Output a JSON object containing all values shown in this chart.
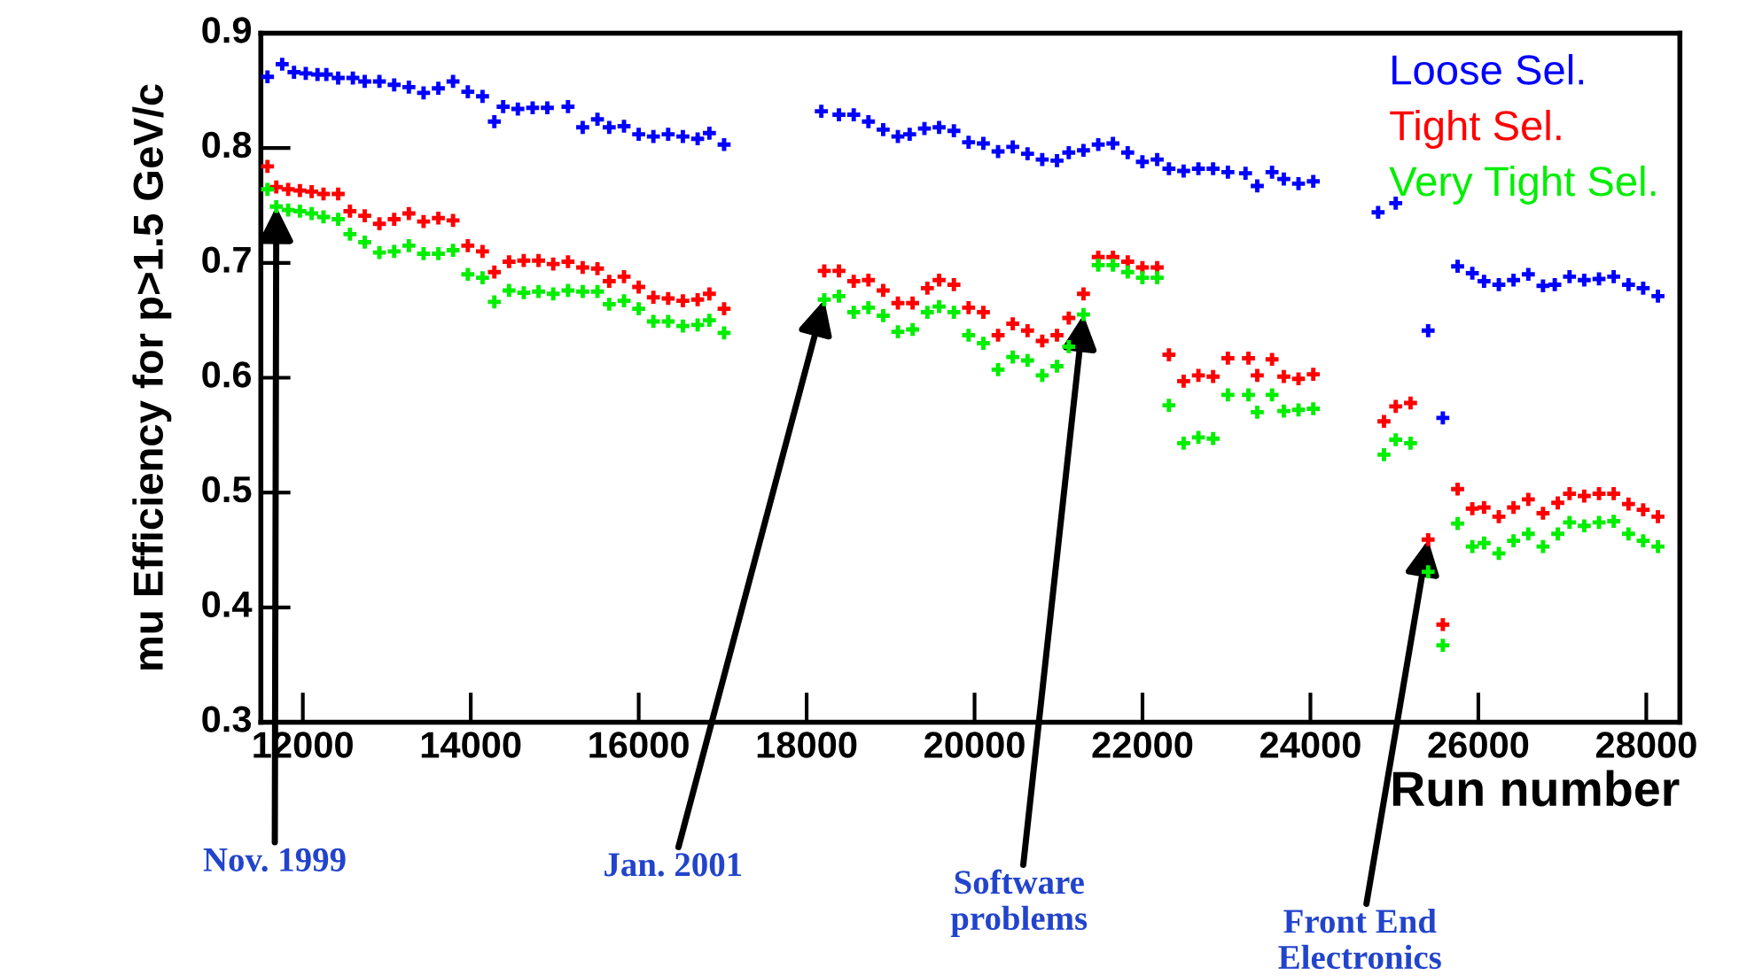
{
  "chart_data": {
    "type": "scatter",
    "xlabel": "Run number",
    "ylabel": "mu Efficiency for p>1.5 GeV/c",
    "xlim": [
      11500,
      28400
    ],
    "ylim": [
      0.3,
      0.9
    ],
    "xticks": [
      12000,
      14000,
      16000,
      18000,
      20000,
      22000,
      24000,
      26000,
      28000
    ],
    "yticks": [
      0.3,
      0.4,
      0.5,
      0.6,
      0.7,
      0.8,
      0.9
    ],
    "grid": false,
    "legend": "top right",
    "series": [
      {
        "name": "Loose Sel.",
        "color": "#0000ff",
        "x": [
          11579,
          11754,
          11895,
          12035,
          12175,
          12280,
          12421,
          12596,
          12737,
          12912,
          13088,
          13263,
          13438,
          13614,
          13789,
          13965,
          14140,
          14281,
          14386,
          14561,
          14737,
          14912,
          15158,
          15333,
          15509,
          15649,
          15825,
          16000,
          16175,
          16351,
          16526,
          16702,
          16842,
          17017,
          18175,
          18385,
          18561,
          18736,
          18912,
          19087,
          19227,
          19403,
          19578,
          19754,
          19929,
          20105,
          20280,
          20455,
          20631,
          20806,
          20982,
          21122,
          21297,
          21473,
          21648,
          21824,
          21999,
          22175,
          22315,
          22490,
          22666,
          22841,
          23017,
          23227,
          23367,
          23543,
          23683,
          23858,
          24034,
          24806,
          25016,
          25402,
          25577,
          25753,
          25928,
          26068,
          26244,
          26419,
          26595,
          26770,
          26910,
          27086,
          27261,
          27437,
          27612,
          27788,
          27963,
          28139
        ],
        "values": [
          0.862,
          0.873,
          0.866,
          0.865,
          0.864,
          0.864,
          0.861,
          0.861,
          0.858,
          0.858,
          0.855,
          0.853,
          0.848,
          0.852,
          0.858,
          0.849,
          0.845,
          0.823,
          0.836,
          0.834,
          0.835,
          0.835,
          0.836,
          0.818,
          0.825,
          0.818,
          0.819,
          0.812,
          0.81,
          0.812,
          0.81,
          0.808,
          0.813,
          0.803,
          0.832,
          0.829,
          0.829,
          0.823,
          0.816,
          0.81,
          0.812,
          0.817,
          0.818,
          0.815,
          0.805,
          0.804,
          0.797,
          0.801,
          0.795,
          0.79,
          0.789,
          0.796,
          0.798,
          0.803,
          0.804,
          0.796,
          0.788,
          0.79,
          0.782,
          0.78,
          0.782,
          0.782,
          0.779,
          0.778,
          0.767,
          0.779,
          0.773,
          0.769,
          0.771,
          0.744,
          0.752,
          0.641,
          0.565,
          0.697,
          0.691,
          0.684,
          0.681,
          0.685,
          0.69,
          0.68,
          0.681,
          0.688,
          0.685,
          0.686,
          0.688,
          0.681,
          0.678,
          0.671
        ]
      },
      {
        "name": "Tight Sel.",
        "color": "#ff0000",
        "x": [
          11579,
          11684,
          11825,
          11965,
          12105,
          12246,
          12421,
          12561,
          12737,
          12912,
          13088,
          13263,
          13438,
          13614,
          13789,
          13965,
          14140,
          14281,
          14456,
          14631,
          14807,
          14982,
          15158,
          15333,
          15509,
          15649,
          15825,
          16000,
          16175,
          16351,
          16526,
          16702,
          16842,
          17017,
          18210,
          18385,
          18561,
          18736,
          18912,
          19087,
          19262,
          19438,
          19578,
          19754,
          19929,
          20105,
          20280,
          20455,
          20631,
          20806,
          20982,
          21122,
          21297,
          21473,
          21648,
          21824,
          21999,
          22175,
          22315,
          22490,
          22666,
          22841,
          23017,
          23262,
          23367,
          23543,
          23683,
          23858,
          24034,
          24876,
          25016,
          25192,
          25402,
          25577,
          25753,
          25928,
          26068,
          26244,
          26419,
          26595,
          26770,
          26946,
          27086,
          27261,
          27437,
          27612,
          27788,
          27963,
          28139
        ],
        "values": [
          0.784,
          0.766,
          0.764,
          0.763,
          0.762,
          0.76,
          0.76,
          0.745,
          0.741,
          0.734,
          0.738,
          0.743,
          0.736,
          0.739,
          0.737,
          0.715,
          0.71,
          0.692,
          0.701,
          0.702,
          0.702,
          0.699,
          0.701,
          0.696,
          0.695,
          0.684,
          0.688,
          0.679,
          0.67,
          0.669,
          0.667,
          0.668,
          0.673,
          0.66,
          0.693,
          0.693,
          0.684,
          0.685,
          0.676,
          0.665,
          0.665,
          0.678,
          0.685,
          0.681,
          0.661,
          0.657,
          0.637,
          0.647,
          0.641,
          0.632,
          0.637,
          0.652,
          0.673,
          0.705,
          0.705,
          0.701,
          0.696,
          0.696,
          0.62,
          0.597,
          0.602,
          0.601,
          0.617,
          0.617,
          0.602,
          0.616,
          0.601,
          0.599,
          0.603,
          0.562,
          0.575,
          0.578,
          0.459,
          0.385,
          0.503,
          0.486,
          0.487,
          0.479,
          0.487,
          0.494,
          0.482,
          0.491,
          0.499,
          0.497,
          0.499,
          0.499,
          0.49,
          0.485,
          0.479
        ]
      },
      {
        "name": "Very Tight Sel.",
        "color": "#00ee00",
        "x": [
          11579,
          11684,
          11825,
          11965,
          12105,
          12246,
          12421,
          12561,
          12737,
          12912,
          13088,
          13263,
          13438,
          13614,
          13789,
          13965,
          14140,
          14281,
          14456,
          14631,
          14807,
          14982,
          15158,
          15333,
          15509,
          15649,
          15825,
          16000,
          16175,
          16351,
          16526,
          16702,
          16842,
          17017,
          18210,
          18385,
          18561,
          18736,
          18912,
          19087,
          19262,
          19438,
          19578,
          19754,
          19929,
          20105,
          20280,
          20455,
          20631,
          20806,
          20982,
          21122,
          21297,
          21473,
          21648,
          21824,
          21999,
          22175,
          22315,
          22490,
          22666,
          22841,
          23017,
          23262,
          23367,
          23543,
          23683,
          23858,
          24034,
          24876,
          25016,
          25192,
          25402,
          25577,
          25753,
          25928,
          26068,
          26244,
          26419,
          26595,
          26770,
          26946,
          27086,
          27261,
          27437,
          27612,
          27788,
          27963,
          28139
        ],
        "values": [
          0.764,
          0.749,
          0.746,
          0.745,
          0.743,
          0.74,
          0.738,
          0.725,
          0.718,
          0.709,
          0.71,
          0.715,
          0.708,
          0.708,
          0.711,
          0.69,
          0.687,
          0.666,
          0.676,
          0.674,
          0.675,
          0.673,
          0.676,
          0.675,
          0.675,
          0.664,
          0.667,
          0.66,
          0.649,
          0.649,
          0.645,
          0.646,
          0.65,
          0.639,
          0.668,
          0.671,
          0.657,
          0.661,
          0.654,
          0.64,
          0.642,
          0.657,
          0.662,
          0.657,
          0.637,
          0.63,
          0.607,
          0.618,
          0.615,
          0.602,
          0.61,
          0.627,
          0.655,
          0.698,
          0.698,
          0.692,
          0.687,
          0.687,
          0.576,
          0.543,
          0.548,
          0.547,
          0.585,
          0.585,
          0.57,
          0.585,
          0.571,
          0.572,
          0.573,
          0.533,
          0.546,
          0.543,
          0.431,
          0.367,
          0.473,
          0.453,
          0.456,
          0.447,
          0.458,
          0.464,
          0.453,
          0.464,
          0.474,
          0.471,
          0.474,
          0.475,
          0.464,
          0.458,
          0.453
        ]
      }
    ],
    "annotations": [
      {
        "text": "Nov. 1999",
        "x": 11684,
        "y": 0.749
      },
      {
        "text": "Jan. 2001",
        "x": 18210,
        "y": 0.668
      },
      {
        "text": "Software\nproblems",
        "x": 21297,
        "y": 0.655
      },
      {
        "text": "Front End\nElectronics",
        "x": 25402,
        "y": 0.459
      }
    ]
  }
}
